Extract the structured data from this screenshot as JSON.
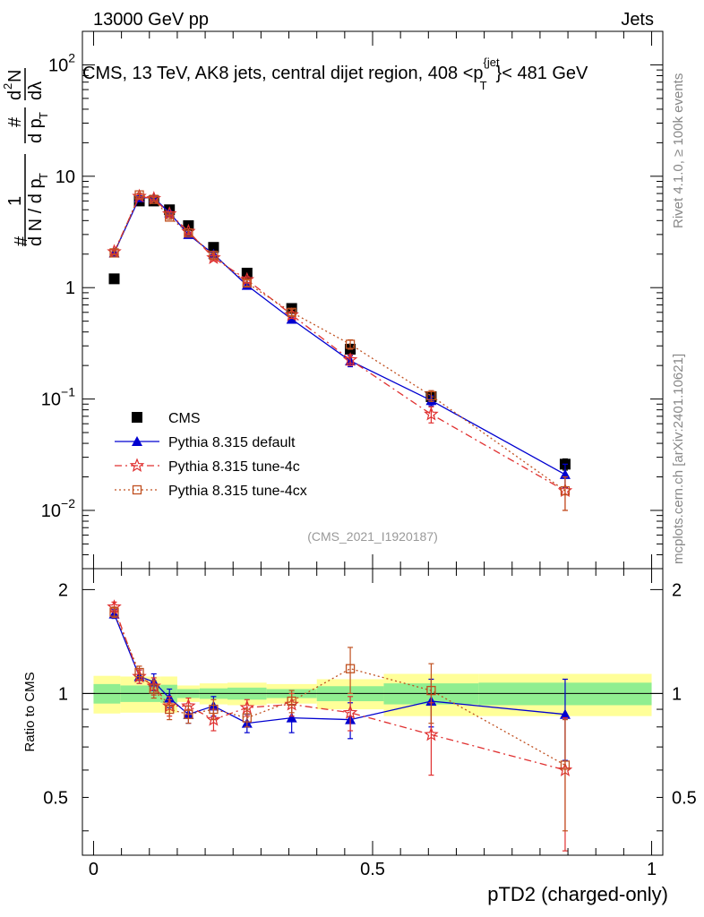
{
  "header": {
    "left": "13000 GeV pp",
    "right": "Jets"
  },
  "side_labels": {
    "rivet": "Rivet 4.1.0, ≥ 100k events",
    "mcplots": "mcplots.cern.ch [arXiv:2401.10621]"
  },
  "chart_data": {
    "type": "scatter",
    "title": "CMS, 13 TeV, AK8 jets, central dijet region, 408 <p",
    "title_sup": "{jet",
    "title_sub": "T",
    "title_tail": "}< 481 GeV",
    "watermark": "(CMS_2021_I1920187)",
    "xlabel": "pTD2 (charged-only)",
    "xlim": [
      -0.02,
      1.02
    ],
    "x_ticks": [
      0,
      0.5,
      1
    ],
    "x_tick_labels": [
      "0",
      "0.5",
      "1"
    ],
    "main": {
      "ylabel_parts": [
        "#",
        "1",
        "d N / d p",
        "T",
        "#",
        "d p",
        "T",
        "d",
        "2",
        "N",
        "dλ"
      ],
      "yscale": "log",
      "ylim": [
        0.003,
        200
      ],
      "y_tick_labels": [
        {
          "value": 100,
          "base": "10",
          "exp": "2"
        },
        {
          "value": 10,
          "base": "10",
          "exp": ""
        },
        {
          "value": 1,
          "base": "1",
          "exp": ""
        },
        {
          "value": 0.1,
          "base": "10",
          "exp": "−1"
        },
        {
          "value": 0.01,
          "base": "10",
          "exp": "−2"
        }
      ],
      "series": [
        {
          "name": "CMS",
          "color": "#000000",
          "marker": "square-filled",
          "line": "none",
          "x": [
            0.037,
            0.082,
            0.108,
            0.136,
            0.17,
            0.215,
            0.275,
            0.355,
            0.46,
            0.605,
            0.845
          ],
          "y": [
            1.2,
            6.0,
            6.0,
            5.0,
            3.6,
            2.3,
            1.35,
            0.65,
            0.28,
            0.105,
            0.026
          ],
          "err": [
            0.05,
            0.3,
            0.3,
            0.25,
            0.15,
            0.1,
            0.07,
            0.04,
            0.03,
            0.008,
            0.003
          ]
        },
        {
          "name": "Pythia 8.315 default",
          "color": "#0000d0",
          "marker": "triangle-filled",
          "line": "solid",
          "x": [
            0.037,
            0.082,
            0.108,
            0.136,
            0.17,
            0.215,
            0.275,
            0.355,
            0.46,
            0.605,
            0.845
          ],
          "y": [
            2.05,
            6.4,
            6.4,
            4.7,
            3.0,
            2.0,
            1.05,
            0.52,
            0.22,
            0.097,
            0.021
          ],
          "err": [
            0.08,
            0.25,
            0.25,
            0.2,
            0.15,
            0.1,
            0.06,
            0.04,
            0.025,
            0.01,
            0.005
          ]
        },
        {
          "name": "Pythia 8.315 tune-4c",
          "color": "#e03030",
          "marker": "star-open",
          "line": "dashdot",
          "x": [
            0.037,
            0.082,
            0.108,
            0.136,
            0.17,
            0.215,
            0.275,
            0.355,
            0.46,
            0.605,
            0.845
          ],
          "y": [
            2.1,
            6.6,
            6.3,
            4.6,
            3.2,
            1.85,
            1.18,
            0.57,
            0.225,
            0.073,
            0.015
          ],
          "err": [
            0.08,
            0.25,
            0.25,
            0.2,
            0.15,
            0.1,
            0.07,
            0.04,
            0.025,
            0.012,
            0.005
          ]
        },
        {
          "name": "Pythia 8.315 tune-4cx",
          "color": "#c05020",
          "marker": "square-open",
          "line": "dotted",
          "x": [
            0.037,
            0.082,
            0.108,
            0.136,
            0.17,
            0.215,
            0.275,
            0.355,
            0.46,
            0.605,
            0.845
          ],
          "y": [
            2.05,
            6.8,
            6.2,
            4.3,
            3.1,
            1.95,
            1.1,
            0.6,
            0.31,
            0.107,
            0.015
          ],
          "err": [
            0.08,
            0.25,
            0.25,
            0.2,
            0.15,
            0.1,
            0.07,
            0.04,
            0.03,
            0.012,
            0.005
          ]
        }
      ]
    },
    "ratio": {
      "ylabel": "Ratio to CMS",
      "ylim": [
        0.34,
        2.3
      ],
      "y_ticks": [
        0.5,
        1,
        2
      ],
      "y_tick_labels": [
        "0.5",
        "1",
        "2"
      ],
      "bands": {
        "edges": [
          0,
          0.048,
          0.12,
          0.15,
          0.19,
          0.24,
          0.31,
          0.4,
          0.52,
          0.69,
          1.0
        ],
        "green_half": [
          0.065,
          0.055,
          0.06,
          0.03,
          0.035,
          0.04,
          0.03,
          0.05,
          0.07,
          0.075
        ],
        "yellow_half": [
          0.125,
          0.12,
          0.12,
          0.055,
          0.07,
          0.075,
          0.065,
          0.1,
          0.14,
          0.14
        ],
        "green_color": "#90ee90",
        "yellow_color": "#ffff99"
      },
      "series": [
        {
          "name": "Pythia 8.315 default",
          "color": "#0000d0",
          "marker": "triangle-filled",
          "line": "solid",
          "x": [
            0.037,
            0.082,
            0.108,
            0.136,
            0.17,
            0.215,
            0.275,
            0.355,
            0.46,
            0.605,
            0.845
          ],
          "y": [
            1.7,
            1.12,
            1.08,
            0.97,
            0.87,
            0.92,
            0.82,
            0.85,
            0.84,
            0.95,
            0.87
          ],
          "err": [
            0.05,
            0.05,
            0.06,
            0.06,
            0.05,
            0.06,
            0.05,
            0.08,
            0.1,
            0.15,
            0.23
          ]
        },
        {
          "name": "Pythia 8.315 tune-4c",
          "color": "#e03030",
          "marker": "star-open",
          "line": "dashdot",
          "x": [
            0.037,
            0.082,
            0.108,
            0.136,
            0.17,
            0.215,
            0.275,
            0.355,
            0.46,
            0.605,
            0.845
          ],
          "y": [
            1.78,
            1.12,
            1.05,
            0.92,
            0.92,
            0.84,
            0.91,
            0.93,
            0.88,
            0.76,
            0.6
          ],
          "err": [
            0.06,
            0.05,
            0.06,
            0.06,
            0.05,
            0.06,
            0.05,
            0.07,
            0.1,
            0.18,
            0.25
          ]
        },
        {
          "name": "Pythia 8.315 tune-4cx",
          "color": "#c05020",
          "marker": "square-open",
          "line": "dotted",
          "x": [
            0.037,
            0.082,
            0.108,
            0.136,
            0.17,
            0.215,
            0.275,
            0.355,
            0.46,
            0.605,
            0.845
          ],
          "y": [
            1.72,
            1.15,
            1.03,
            0.9,
            0.87,
            0.9,
            0.85,
            0.95,
            1.18,
            1.02,
            0.62
          ],
          "err": [
            0.06,
            0.05,
            0.06,
            0.06,
            0.05,
            0.06,
            0.05,
            0.07,
            0.18,
            0.2,
            0.22
          ]
        }
      ]
    },
    "legend": {
      "placement": "lower-left",
      "entries": [
        "CMS",
        "Pythia 8.315 default",
        "Pythia 8.315 tune-4c",
        "Pythia 8.315 tune-4cx"
      ]
    }
  }
}
